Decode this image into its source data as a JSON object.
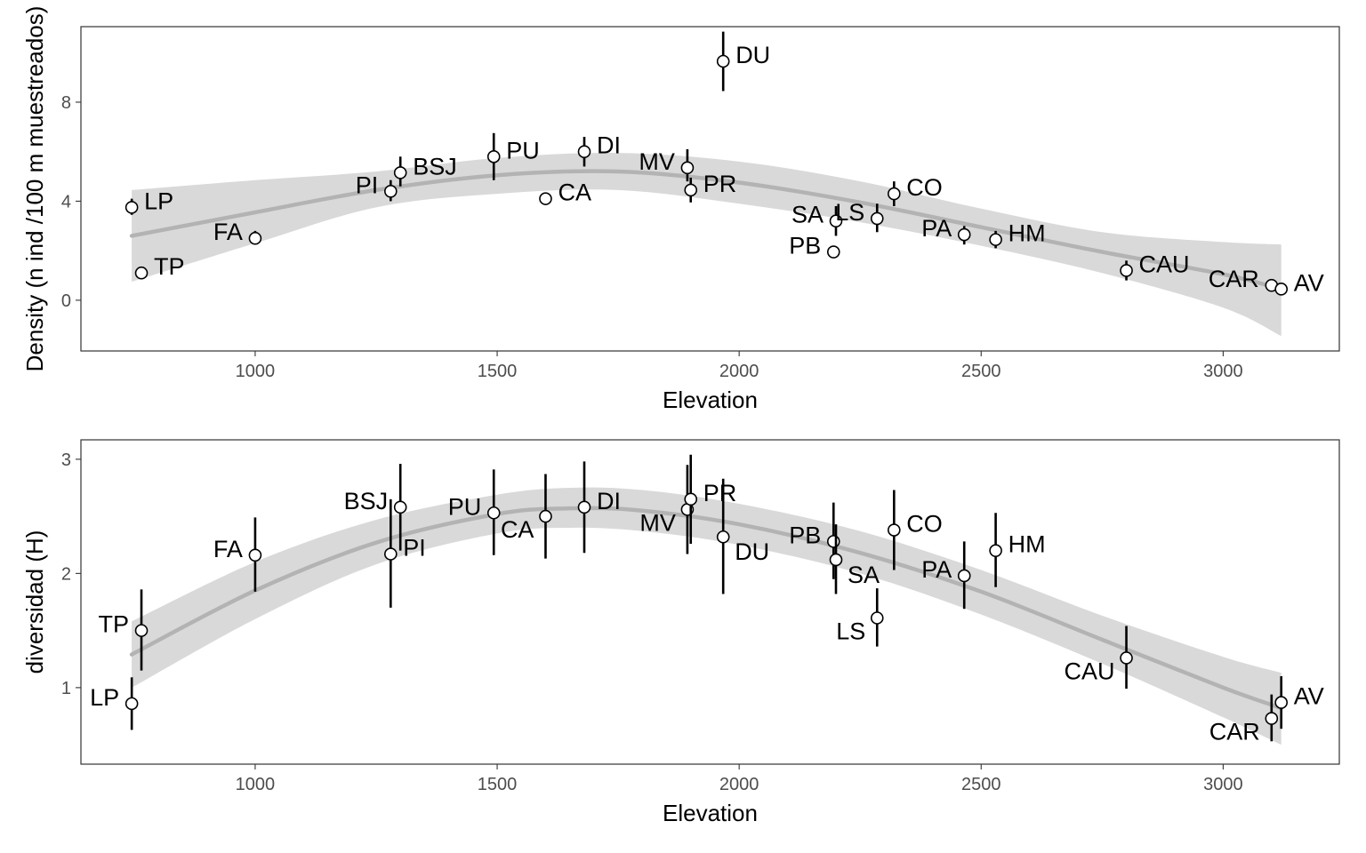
{
  "colors": {
    "background": "#ffffff",
    "band": "#d9d9d9",
    "trend": "#b3b3b3",
    "points": "#000000"
  },
  "chart_data": [
    {
      "type": "scatter",
      "title": "",
      "xlabel": "Elevation",
      "ylabel": "Density (n ind /100 m muestreados)",
      "xlim": [
        640,
        3240
      ],
      "ylim": [
        -2.05,
        11.05
      ],
      "x_ticks": [
        1000,
        1500,
        2000,
        2500,
        3000
      ],
      "y_ticks": [
        0,
        4,
        8
      ],
      "grid": false,
      "legend": "none",
      "points": [
        {
          "label": "LP",
          "x": 745,
          "y": 3.75,
          "lo": 3.45,
          "hi": 4.1,
          "lpos": "right"
        },
        {
          "label": "TP",
          "x": 765,
          "y": 1.1,
          "lo": 1.0,
          "hi": 1.2,
          "lpos": "right"
        },
        {
          "label": "FA",
          "x": 1000,
          "y": 2.5,
          "lo": 2.25,
          "hi": 2.8,
          "lpos": "left"
        },
        {
          "label": "PI",
          "x": 1280,
          "y": 4.4,
          "lo": 4.0,
          "hi": 4.85,
          "lpos": "left"
        },
        {
          "label": "BSJ",
          "x": 1300,
          "y": 5.15,
          "lo": 4.6,
          "hi": 5.8,
          "lpos": "right"
        },
        {
          "label": "PU",
          "x": 1493,
          "y": 5.8,
          "lo": 4.85,
          "hi": 6.75,
          "lpos": "right"
        },
        {
          "label": "CA",
          "x": 1600,
          "y": 4.1,
          "lo": 3.85,
          "hi": 4.35,
          "lpos": "right"
        },
        {
          "label": "DI",
          "x": 1680,
          "y": 6.0,
          "lo": 5.4,
          "hi": 6.6,
          "lpos": "right"
        },
        {
          "label": "MV",
          "x": 1893,
          "y": 5.35,
          "lo": 4.8,
          "hi": 6.1,
          "lpos": "left"
        },
        {
          "label": "PR",
          "x": 1900,
          "y": 4.45,
          "lo": 3.95,
          "hi": 4.95,
          "lpos": "right"
        },
        {
          "label": "DU",
          "x": 1967,
          "y": 9.65,
          "lo": 8.45,
          "hi": 10.85,
          "lpos": "right"
        },
        {
          "label": "PB",
          "x": 2195,
          "y": 1.95,
          "lo": 1.9,
          "hi": 2.0,
          "lpos": "left"
        },
        {
          "label": "SA",
          "x": 2200,
          "y": 3.2,
          "lo": 2.6,
          "hi": 3.8,
          "lpos": "left"
        },
        {
          "label": "LS",
          "x": 2285,
          "y": 3.3,
          "lo": 2.75,
          "hi": 3.9,
          "lpos": "left"
        },
        {
          "label": "CO",
          "x": 2320,
          "y": 4.3,
          "lo": 3.8,
          "hi": 4.8,
          "lpos": "right"
        },
        {
          "label": "PA",
          "x": 2465,
          "y": 2.65,
          "lo": 2.25,
          "hi": 3.0,
          "lpos": "left"
        },
        {
          "label": "HM",
          "x": 2530,
          "y": 2.45,
          "lo": 2.1,
          "hi": 2.8,
          "lpos": "right"
        },
        {
          "label": "CAU",
          "x": 2800,
          "y": 1.2,
          "lo": 0.8,
          "hi": 1.6,
          "lpos": "right"
        },
        {
          "label": "CAR",
          "x": 3100,
          "y": 0.6,
          "lo": 0.5,
          "hi": 0.7,
          "lpos": "left"
        },
        {
          "label": "AV",
          "x": 3120,
          "y": 0.45,
          "lo": 0.35,
          "hi": 0.55,
          "lpos": "right"
        }
      ],
      "trend": [
        {
          "x": 745,
          "y": 2.6,
          "lo": 0.75,
          "hi": 4.45
        },
        {
          "x": 1000,
          "y": 3.55,
          "lo": 2.3,
          "hi": 4.85
        },
        {
          "x": 1250,
          "y": 4.45,
          "lo": 3.75,
          "hi": 5.2
        },
        {
          "x": 1500,
          "y": 5.05,
          "lo": 4.3,
          "hi": 5.75
        },
        {
          "x": 1750,
          "y": 5.2,
          "lo": 4.45,
          "hi": 5.95
        },
        {
          "x": 2000,
          "y": 4.75,
          "lo": 3.9,
          "hi": 5.6
        },
        {
          "x": 2250,
          "y": 3.95,
          "lo": 3.15,
          "hi": 4.8
        },
        {
          "x": 2500,
          "y": 2.95,
          "lo": 2.2,
          "hi": 3.7
        },
        {
          "x": 2750,
          "y": 1.95,
          "lo": 1.1,
          "hi": 2.75
        },
        {
          "x": 3000,
          "y": 1.05,
          "lo": -0.3,
          "hi": 2.35
        },
        {
          "x": 3120,
          "y": 0.45,
          "lo": -1.45,
          "hi": 2.25
        }
      ]
    },
    {
      "type": "scatter",
      "title": "",
      "xlabel": "Elevation",
      "ylabel": "diversidad (H)",
      "xlim": [
        640,
        3240
      ],
      "ylim": [
        0.33,
        3.17
      ],
      "x_ticks": [
        1000,
        1500,
        2000,
        2500,
        3000
      ],
      "y_ticks": [
        1,
        2,
        3
      ],
      "grid": false,
      "legend": "none",
      "points": [
        {
          "label": "LP",
          "x": 745,
          "y": 0.86,
          "lo": 0.63,
          "hi": 1.09,
          "lpos": "left"
        },
        {
          "label": "TP",
          "x": 765,
          "y": 1.5,
          "lo": 1.15,
          "hi": 1.86,
          "lpos": "left"
        },
        {
          "label": "FA",
          "x": 1000,
          "y": 2.16,
          "lo": 1.84,
          "hi": 2.49,
          "lpos": "left"
        },
        {
          "label": "PI",
          "x": 1280,
          "y": 2.17,
          "lo": 1.7,
          "hi": 2.65,
          "lpos": "right"
        },
        {
          "label": "BSJ",
          "x": 1300,
          "y": 2.58,
          "lo": 2.2,
          "hi": 2.96,
          "lpos": "left"
        },
        {
          "label": "PU",
          "x": 1493,
          "y": 2.53,
          "lo": 2.16,
          "hi": 2.91,
          "lpos": "left"
        },
        {
          "label": "CA",
          "x": 1600,
          "y": 2.5,
          "lo": 2.13,
          "hi": 2.87,
          "lpos": "leftbelow"
        },
        {
          "label": "DI",
          "x": 1680,
          "y": 2.58,
          "lo": 2.18,
          "hi": 2.98,
          "lpos": "right"
        },
        {
          "label": "MV",
          "x": 1893,
          "y": 2.56,
          "lo": 2.17,
          "hi": 2.95,
          "lpos": "leftbelow"
        },
        {
          "label": "PR",
          "x": 1900,
          "y": 2.65,
          "lo": 2.26,
          "hi": 3.04,
          "lpos": "right"
        },
        {
          "label": "DU",
          "x": 1967,
          "y": 2.32,
          "lo": 1.82,
          "hi": 2.83,
          "lpos": "rightbelow"
        },
        {
          "label": "PB",
          "x": 2195,
          "y": 2.28,
          "lo": 1.95,
          "hi": 2.62,
          "lpos": "left"
        },
        {
          "label": "SA",
          "x": 2200,
          "y": 2.12,
          "lo": 1.82,
          "hi": 2.43,
          "lpos": "rightbelow"
        },
        {
          "label": "LS",
          "x": 2285,
          "y": 1.61,
          "lo": 1.36,
          "hi": 1.87,
          "lpos": "leftbelow"
        },
        {
          "label": "CO",
          "x": 2320,
          "y": 2.38,
          "lo": 2.03,
          "hi": 2.73,
          "lpos": "right"
        },
        {
          "label": "PA",
          "x": 2465,
          "y": 1.98,
          "lo": 1.69,
          "hi": 2.28,
          "lpos": "left"
        },
        {
          "label": "HM",
          "x": 2530,
          "y": 2.2,
          "lo": 1.88,
          "hi": 2.53,
          "lpos": "right"
        },
        {
          "label": "CAU",
          "x": 2800,
          "y": 1.26,
          "lo": 0.99,
          "hi": 1.54,
          "lpos": "leftbelow"
        },
        {
          "label": "CAR",
          "x": 3100,
          "y": 0.73,
          "lo": 0.53,
          "hi": 0.94,
          "lpos": "leftbelow"
        },
        {
          "label": "AV",
          "x": 3120,
          "y": 0.87,
          "lo": 0.64,
          "hi": 1.1,
          "lpos": "right"
        }
      ],
      "trend": [
        {
          "x": 745,
          "y": 1.29,
          "lo": 1.0,
          "hi": 1.58
        },
        {
          "x": 1000,
          "y": 1.85,
          "lo": 1.6,
          "hi": 2.1
        },
        {
          "x": 1250,
          "y": 2.27,
          "lo": 2.08,
          "hi": 2.47
        },
        {
          "x": 1500,
          "y": 2.52,
          "lo": 2.35,
          "hi": 2.69
        },
        {
          "x": 1650,
          "y": 2.57,
          "lo": 2.4,
          "hi": 2.75
        },
        {
          "x": 1800,
          "y": 2.55,
          "lo": 2.37,
          "hi": 2.73
        },
        {
          "x": 2000,
          "y": 2.43,
          "lo": 2.25,
          "hi": 2.61
        },
        {
          "x": 2250,
          "y": 2.18,
          "lo": 2.0,
          "hi": 2.37
        },
        {
          "x": 2500,
          "y": 1.84,
          "lo": 1.64,
          "hi": 2.03
        },
        {
          "x": 2750,
          "y": 1.42,
          "lo": 1.21,
          "hi": 1.63
        },
        {
          "x": 3000,
          "y": 1.0,
          "lo": 0.74,
          "hi": 1.27
        },
        {
          "x": 3120,
          "y": 0.82,
          "lo": 0.5,
          "hi": 1.13
        }
      ]
    }
  ]
}
